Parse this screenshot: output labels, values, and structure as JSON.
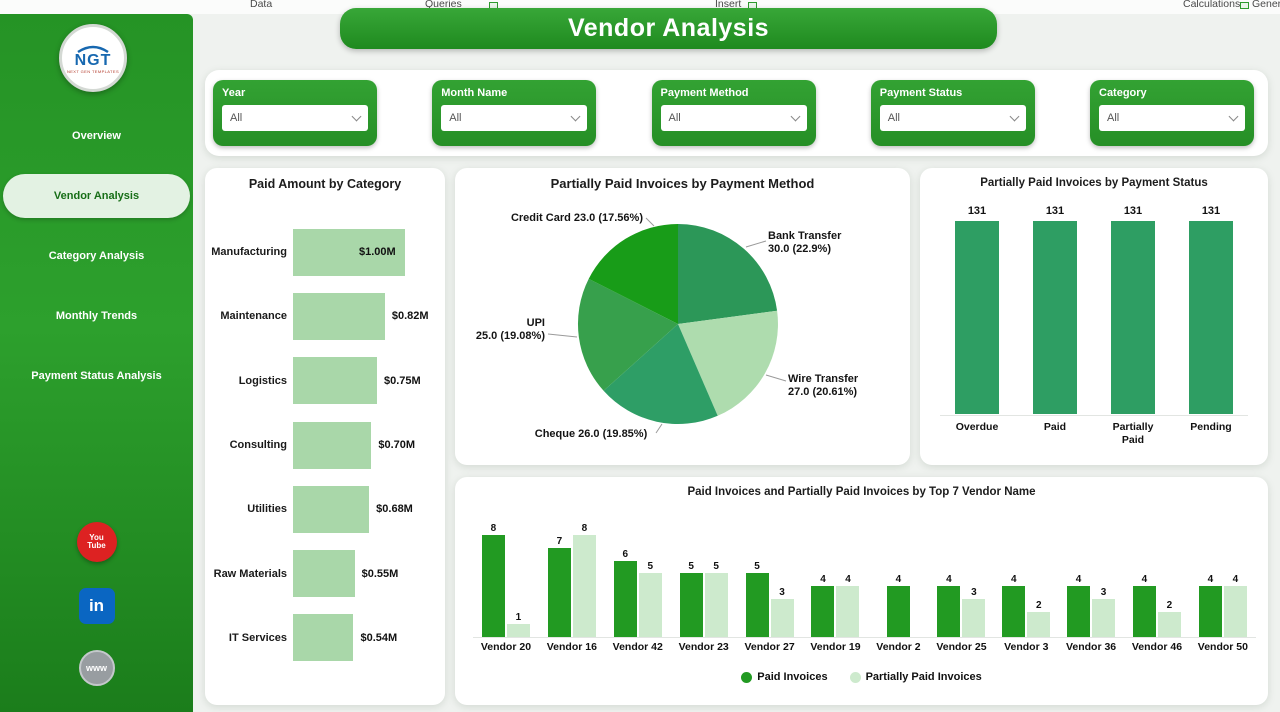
{
  "ribbon": {
    "items": [
      "Data",
      "Queries",
      "Insert",
      "Calculations",
      "General"
    ]
  },
  "sidebar": {
    "logo": {
      "text": "NGT",
      "subtext": "NEXT GEN TEMPLATES"
    },
    "items": [
      {
        "label": "Overview",
        "active": false
      },
      {
        "label": "Vendor Analysis",
        "active": true
      },
      {
        "label": "Category Analysis",
        "active": false
      },
      {
        "label": "Monthly Trends",
        "active": false
      },
      {
        "label": "Payment Status Analysis",
        "active": false
      }
    ],
    "social": [
      {
        "name": "youtube",
        "text": "You Tube"
      },
      {
        "name": "linkedin",
        "text": "in"
      },
      {
        "name": "website",
        "text": "www"
      }
    ]
  },
  "header": {
    "title": "Vendor Analysis"
  },
  "filters": [
    {
      "label": "Year",
      "value": "All"
    },
    {
      "label": "Month Name",
      "value": "All"
    },
    {
      "label": "Payment Method",
      "value": "All"
    },
    {
      "label": "Payment Status",
      "value": "All"
    },
    {
      "label": "Category",
      "value": "All"
    }
  ],
  "theme": {
    "primary_green": "#2e9b2e",
    "light_green": "#a9d7a9",
    "pale_green": "#cdeacd",
    "sea_green": "#2e9e63"
  },
  "chart_data": [
    {
      "id": "paid_by_category",
      "type": "bar",
      "orientation": "horizontal",
      "title": "Paid Amount by Category",
      "categories": [
        "Manufacturing",
        "Maintenance",
        "Logistics",
        "Consulting",
        "Utilities",
        "Raw Materials",
        "IT Services"
      ],
      "values": [
        1.0,
        0.82,
        0.75,
        0.7,
        0.68,
        0.55,
        0.54
      ],
      "value_labels": [
        "$1.00M",
        "$0.82M",
        "$0.75M",
        "$0.70M",
        "$0.68M",
        "$0.55M",
        "$0.54M"
      ],
      "bar_color": "#a9d7a9",
      "xlim": [
        0,
        1.0
      ]
    },
    {
      "id": "partially_paid_by_payment_method",
      "type": "pie",
      "title": "Partially Paid Invoices by Payment Method",
      "slices": [
        {
          "name": "Bank Transfer",
          "value": 30.0,
          "pct": 22.9,
          "color": "#2c9758",
          "label1": "Bank Transfer",
          "label2": "30.0 (22.9%)"
        },
        {
          "name": "Wire Transfer",
          "value": 27.0,
          "pct": 20.61,
          "color": "#aedcae",
          "label1": "Wire Transfer",
          "label2": "27.0 (20.61%)"
        },
        {
          "name": "Cheque",
          "value": 26.0,
          "pct": 19.85,
          "color": "#2e9e66",
          "label1": "Cheque 26.0 (19.85%)",
          "label2": ""
        },
        {
          "name": "UPI",
          "value": 25.0,
          "pct": 19.08,
          "color": "#37a04c",
          "label1": "UPI",
          "label2": "25.0 (19.08%)"
        },
        {
          "name": "Credit Card",
          "value": 23.0,
          "pct": 17.56,
          "color": "#189c18",
          "label1": "Credit Card 23.0 (17.56%)",
          "label2": ""
        }
      ]
    },
    {
      "id": "partially_paid_by_payment_status",
      "type": "bar",
      "title": "Partially Paid Invoices by Payment Status",
      "categories": [
        "Overdue",
        "Paid",
        "Partially Paid",
        "Pending"
      ],
      "values": [
        131,
        131,
        131,
        131
      ],
      "bar_color": "#2e9e63",
      "ylim": [
        0,
        131
      ]
    },
    {
      "id": "invoices_by_top_vendor",
      "type": "bar",
      "title": "Paid Invoices and Partially Paid Invoices by Top 7 Vendor Name",
      "categories": [
        "Vendor 20",
        "Vendor 16",
        "Vendor 42",
        "Vendor 23",
        "Vendor 27",
        "Vendor 19",
        "Vendor 2",
        "Vendor 25",
        "Vendor 3",
        "Vendor 36",
        "Vendor 46",
        "Vendor 50"
      ],
      "series": [
        {
          "name": "Paid Invoices",
          "color": "#229a22",
          "values": [
            8,
            7,
            6,
            5,
            5,
            4,
            4,
            4,
            4,
            4,
            4,
            4
          ]
        },
        {
          "name": "Partially Paid Invoices",
          "color": "#cdeacd",
          "values": [
            1,
            8,
            5,
            5,
            3,
            4,
            null,
            3,
            2,
            3,
            2,
            4
          ]
        }
      ],
      "ymax": 8,
      "legend_position": "bottom"
    }
  ]
}
